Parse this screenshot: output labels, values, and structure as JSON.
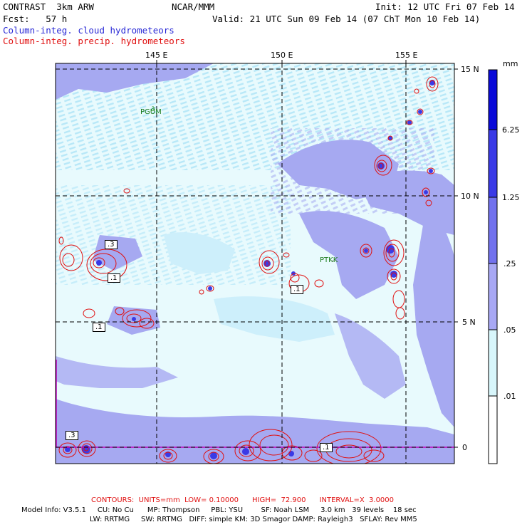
{
  "header": {
    "model": "CONTRAST  3km ARW",
    "org": "NCAR/MMM",
    "init": "Init: 12 UTC Fri 07 Feb 14",
    "fcst": "Fcst:   57 h",
    "valid": "Valid: 21 UTC Sun 09 Feb 14 (07 ChT Mon 10 Feb 14)",
    "field1": "Column-integ. cloud hydrometeors",
    "field2": "Column-integ. precip. hydrometeors"
  },
  "axes": {
    "lon_labels": [
      "145 E",
      "150 E",
      "155 E"
    ],
    "lat_labels": [
      "15 N",
      "10 N",
      "5 N",
      "0"
    ]
  },
  "stations": [
    "PGUM",
    "PTKK"
  ],
  "contour_labels": [
    ".3",
    ".1",
    ".1",
    ".1",
    ".1",
    ".3",
    ".1"
  ],
  "colorbar": {
    "unit": "mm",
    "levels": [
      "6.25",
      "1.25",
      ".25",
      ".05",
      ".01"
    ],
    "colors": [
      "#0a0ad8",
      "#3a3ae6",
      "#7272ee",
      "#a8a8f4",
      "#d8f6fb",
      "#ffffff"
    ]
  },
  "footer": {
    "contours": "CONTOURS:  UNITS=mm  LOW= 0.10000      HIGH=  72.900      INTERVAL=X  3.0000",
    "info1": "Model Info: V3.5.1     CU: No Cu      MP: Thompson     PBL: YSU        SF: Noah LSM     3.0 km   39 levels    18 sec",
    "info2": "LW: RRTMG     SW: RRTMG   DIFF: simple KM: 3D Smagor DAMP: Rayleigh3   SFLAY: Rev MM5"
  }
}
